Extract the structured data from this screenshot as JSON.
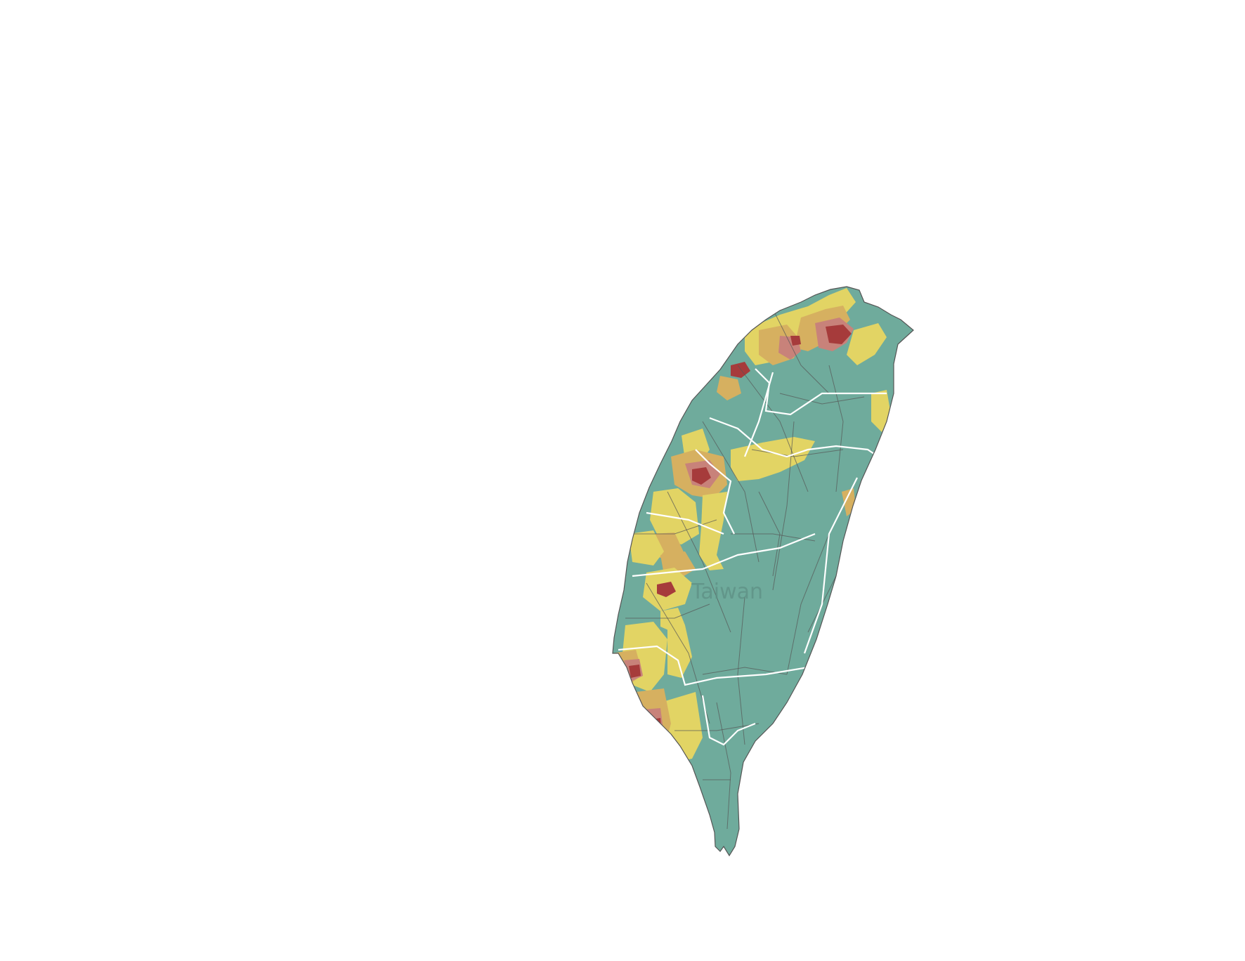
{
  "map": {
    "region_label": "Taiwan",
    "colors": {
      "background": "#ffffff",
      "class_1": "#6fab9c",
      "class_2": "#e2d464",
      "class_3": "#d6b060",
      "class_4": "#c8827a",
      "class_5": "#a63b3b",
      "district_border": "#555555",
      "county_border": "#ffffff"
    }
  }
}
